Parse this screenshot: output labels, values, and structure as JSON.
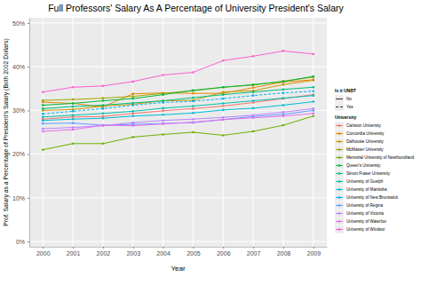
{
  "chart_data": {
    "type": "line",
    "title": "Full Professors' Salary As A Percentage of University President's Salary",
    "x_label": "Year",
    "y_label": "Prof. Salary as a Percentage of President's Salary (Both 2002 Dollars)",
    "x": [
      2000,
      2001,
      2002,
      2003,
      2004,
      2005,
      2006,
      2007,
      2008,
      2009
    ],
    "xlim": [
      1999.55,
      2009.45
    ],
    "xticks": [
      2000,
      2001,
      2002,
      2003,
      2004,
      2005,
      2006,
      2007,
      2008,
      2009
    ],
    "ylim": [
      -1.2,
      51.2
    ],
    "yticks": [
      {
        "value": 0,
        "label": "0%"
      },
      {
        "value": 10,
        "label": "10%"
      },
      {
        "value": 20,
        "label": "20%"
      },
      {
        "value": 30,
        "label": "30%"
      },
      {
        "value": 40,
        "label": "40%"
      },
      {
        "value": 50,
        "label": "50%"
      }
    ],
    "grid": true,
    "legend": "right",
    "marker": "circle",
    "legend_title": "University",
    "line_style_legend": {
      "title": "Is it UNBT",
      "entries": [
        {
          "label": "No",
          "line_style": "solid"
        },
        {
          "label": "Yes",
          "line_style": "dashed"
        }
      ]
    },
    "series": [
      {
        "name": "Carleton University",
        "color": "#F8766D",
        "line_style": "solid",
        "values": [
          28.0,
          28.5,
          28.6,
          29.3,
          29.9,
          30.4,
          31.0,
          31.8,
          32.7,
          33.6
        ]
      },
      {
        "name": "Concordia University",
        "color": "#E58700",
        "line_style": "solid",
        "values": [
          31.9,
          31.6,
          30.8,
          33.8,
          34.0,
          33.9,
          33.9,
          35.2,
          36.5,
          37.0
        ]
      },
      {
        "name": "Dalhousie University",
        "color": "#C99800",
        "line_style": "solid",
        "values": [
          30.0,
          30.2,
          31.0,
          31.4,
          32.2,
          32.3,
          34.2,
          34.5,
          35.9,
          36.9
        ]
      },
      {
        "name": "McMaster University",
        "color": "#A3A500",
        "line_style": "solid",
        "values": [
          32.3,
          32.5,
          32.8,
          33.2,
          33.9,
          34.5,
          35.3,
          35.8,
          36.7,
          37.6
        ]
      },
      {
        "name": "Memorial University of Newfoundland",
        "color": "#6BB100",
        "line_style": "solid",
        "values": [
          21.0,
          22.4,
          22.4,
          23.9,
          24.5,
          25.0,
          24.3,
          25.2,
          26.6,
          28.7
        ]
      },
      {
        "name": "Queen's University",
        "color": "#00BA38",
        "line_style": "solid",
        "values": [
          31.2,
          31.6,
          32.2,
          32.7,
          33.6,
          34.6,
          35.3,
          35.9,
          36.6,
          37.8
        ]
      },
      {
        "name": "Simon Fraser University",
        "color": "#00BF7D",
        "line_style": "solid",
        "values": [
          30.4,
          30.9,
          31.2,
          31.7,
          32.2,
          32.9,
          33.6,
          34.2,
          34.8,
          35.3
        ]
      },
      {
        "name": "University of Guelph",
        "color": "#00C0AF",
        "line_style": "solid",
        "values": [
          28.5,
          28.9,
          29.3,
          29.8,
          30.5,
          31.0,
          31.6,
          32.2,
          32.8,
          33.4
        ]
      },
      {
        "name": "University of Manitoba",
        "color": "#00BCD8",
        "line_style": "solid",
        "values": [
          27.7,
          28.0,
          28.2,
          28.7,
          29.0,
          29.4,
          30.1,
          30.5,
          31.2,
          32.0
        ]
      },
      {
        "name": "University of New Brunswick",
        "color": "#00B0F6",
        "line_style": "dashed",
        "values": [
          29.2,
          29.8,
          30.4,
          31.2,
          31.8,
          32.1,
          32.7,
          33.4,
          34.0,
          34.4
        ]
      },
      {
        "name": "University of Regina",
        "color": "#619CFF",
        "line_style": "solid",
        "values": [
          27.0,
          27.1,
          26.6,
          26.8,
          27.0,
          27.2,
          27.9,
          28.6,
          29.1,
          30.0
        ]
      },
      {
        "name": "University of Victoria",
        "color": "#B983FF",
        "line_style": "solid",
        "values": [
          25.8,
          26.1,
          26.5,
          27.2,
          27.7,
          28.0,
          28.4,
          28.9,
          29.6,
          30.4
        ]
      },
      {
        "name": "University of Waterloo",
        "color": "#E76BF3",
        "line_style": "solid",
        "values": [
          25.2,
          25.6,
          26.6,
          26.5,
          26.9,
          27.3,
          27.9,
          28.3,
          28.7,
          29.3
        ]
      },
      {
        "name": "University of Windsor",
        "color": "#FD61D1",
        "line_style": "solid",
        "values": [
          34.2,
          35.3,
          35.6,
          36.6,
          38.1,
          38.7,
          41.4,
          42.4,
          43.6,
          42.9
        ]
      }
    ]
  }
}
